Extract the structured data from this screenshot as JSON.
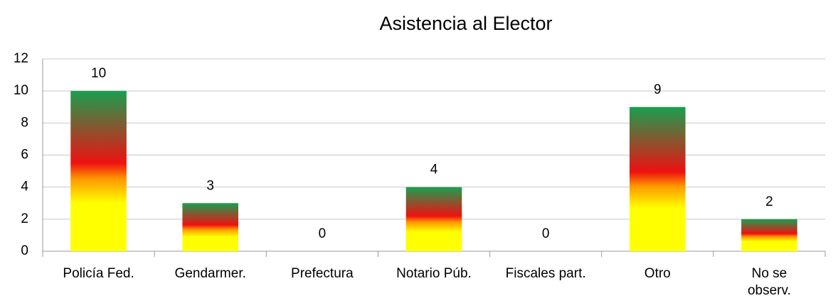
{
  "chart_data": {
    "type": "bar",
    "title": "Asistencia al Elector",
    "categories": [
      "Policía Fed.",
      "Gendarmer.",
      "Prefectura",
      "Notario Púb.",
      "Fiscales part.",
      "Otro",
      "No se observ."
    ],
    "values": [
      10,
      3,
      0,
      4,
      0,
      9,
      2
    ],
    "colors": [
      "#ffff00",
      "#ff9900",
      "#ee1111",
      "#1a9f4f"
    ],
    "ylim": [
      0,
      12
    ],
    "yticks": [
      0,
      2,
      4,
      6,
      8,
      10,
      12
    ],
    "grid": true
  }
}
